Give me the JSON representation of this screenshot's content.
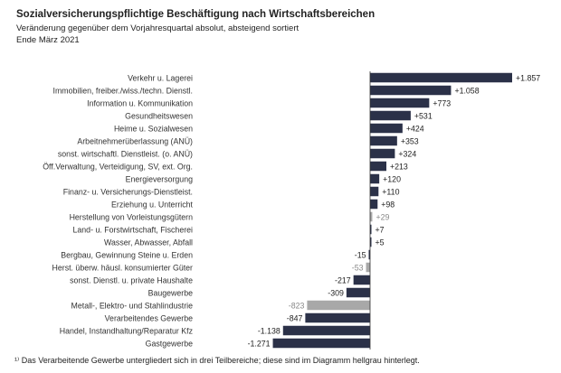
{
  "title": "Sozialversicherungspflichtige Beschäftigung nach Wirtschaftsbereichen",
  "subtitle": "Veränderung gegenüber dem Vorjahresquartal absolut, absteigend sortiert",
  "date": "Ende März 2021",
  "footnote": "¹⁾ Das Verarbeitende Gewerbe  untergliedert sich in drei  Teilbereiche; diese sind im Diagramm hellgrau hinterlegt.",
  "colors": {
    "main": "#2b3148",
    "sub": "#a8a8a8"
  },
  "chart_data": {
    "type": "bar",
    "orientation": "horizontal",
    "categories": [
      "Verkehr u. Lagerei",
      "Immobilien, freiber./wiss./techn. Dienstl.",
      "Information u. Kommunikation",
      "Gesundheitswesen",
      "Heime u. Sozialwesen",
      "Arbeitnehmerüberlassung (ANÜ)",
      "sonst. wirtschaftl. Dienstleist. (o. ANÜ)",
      "Öff.Verwaltung, Verteidigung, SV, ext. Org.",
      "Energieversorgung",
      "Finanz- u. Versicherungs-Dienstleist.",
      "Erziehung u. Unterricht",
      "Herstellung von Vorleistungsgütern",
      "Land- u. Forstwirtschaft, Fischerei",
      "Wasser, Abwasser, Abfall",
      "Bergbau, Gewinnung Steine u. Erden",
      "Herst. überw. häusl. konsumierter Güter",
      "sonst. Dienstl. u. private Haushalte",
      "Baugewerbe",
      "Metall-, Elektro- und Stahlindustrie",
      "Verarbeitendes Gewerbe",
      "Handel, Instandhaltung/Reparatur Kfz",
      "Gastgewerbe"
    ],
    "values": [
      1857,
      1058,
      773,
      531,
      424,
      353,
      324,
      213,
      120,
      110,
      98,
      29,
      7,
      5,
      -15,
      -53,
      -217,
      -309,
      -823,
      -847,
      -1138,
      -1271
    ],
    "labels": [
      "+1.857",
      "+1.058",
      "+773",
      "+531",
      "+424",
      "+353",
      "+324",
      "+213",
      "+120",
      "+110",
      "+98",
      "+29",
      "+7",
      "+5",
      "-15",
      "-53",
      "-217",
      "-309",
      "-823",
      "-847",
      "-1.138",
      "-1.271"
    ],
    "subsector": [
      false,
      false,
      false,
      false,
      false,
      false,
      false,
      false,
      false,
      false,
      false,
      true,
      false,
      false,
      false,
      true,
      false,
      false,
      true,
      false,
      false,
      false
    ]
  }
}
